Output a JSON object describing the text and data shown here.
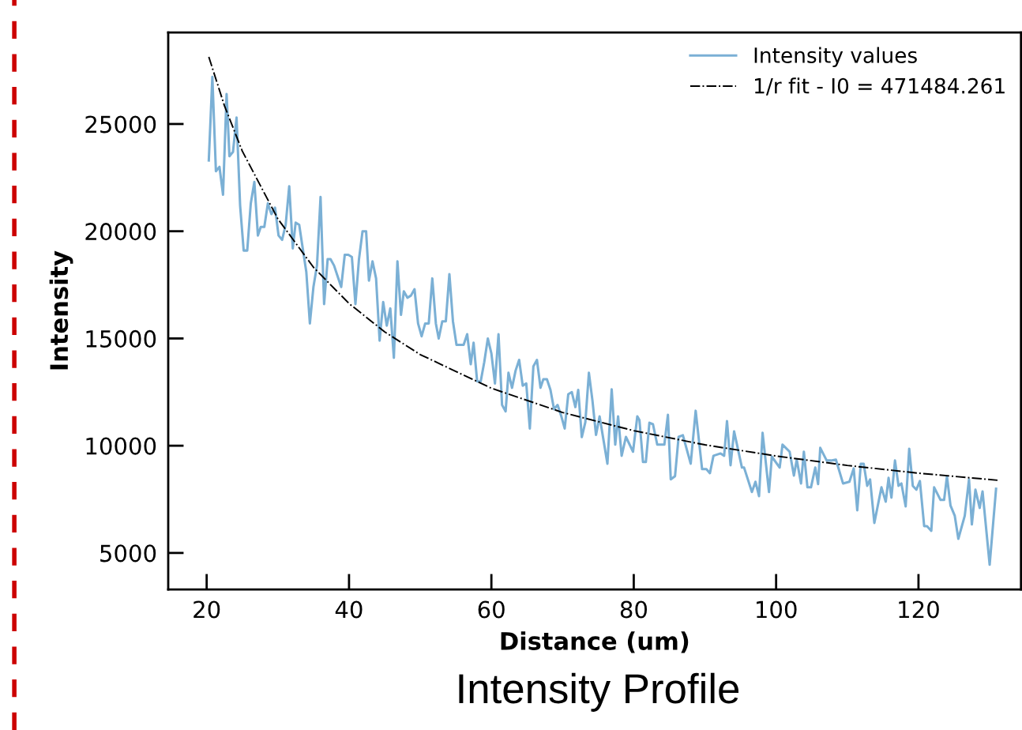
{
  "chart_data": {
    "type": "line",
    "title": "Intensity Profile",
    "xlabel": "Distance (um)",
    "ylabel": "Intensity",
    "xlim": [
      14.6,
      134.4
    ],
    "ylim": [
      3300,
      29270
    ],
    "xticks": [
      20,
      40,
      60,
      80,
      100,
      120
    ],
    "yticks": [
      5000,
      10000,
      15000,
      20000,
      25000
    ],
    "grid": false,
    "legend": "top right",
    "line_style": "solid",
    "marker": "none",
    "series": [
      {
        "name": "Intensity values",
        "color": "#7bb0d5",
        "x": [
          20.3,
          20.8,
          21.3,
          21.8,
          22.3,
          22.8,
          23.2,
          23.7,
          24.2,
          24.7,
          25.2,
          25.7,
          26.2,
          26.7,
          27.2,
          27.6,
          28.1,
          28.6,
          29.1,
          29.6,
          30.1,
          30.6,
          31.1,
          31.6,
          32.1,
          32.5,
          33.0,
          33.5,
          34.0,
          34.5,
          35.0,
          35.5,
          36.0,
          36.5,
          37.0,
          37.4,
          37.9,
          38.4,
          38.9,
          39.4,
          39.9,
          40.4,
          40.9,
          41.4,
          41.9,
          42.4,
          42.8,
          43.3,
          43.8,
          44.3,
          44.8,
          45.3,
          45.8,
          46.3,
          46.8,
          47.3,
          47.7,
          48.2,
          48.7,
          49.2,
          49.7,
          50.2,
          50.7,
          51.2,
          51.7,
          52.2,
          52.6,
          53.1,
          53.6,
          54.1,
          54.6,
          55.1,
          55.6,
          56.1,
          56.6,
          57.1,
          57.5,
          58.0,
          58.5,
          59.0,
          59.5,
          60.0,
          60.5,
          61.0,
          61.5,
          62.0,
          62.4,
          62.9,
          63.4,
          63.9,
          64.4,
          64.9,
          65.4,
          65.9,
          66.4,
          66.9,
          67.3,
          67.8,
          68.3,
          68.8,
          69.3,
          69.8,
          70.3,
          70.8,
          71.3,
          71.8,
          72.2,
          72.7,
          73.2,
          73.7,
          74.2,
          74.7,
          75.2,
          76.3,
          76.9,
          77.4,
          77.8,
          78.3,
          78.9,
          79.9,
          80.5,
          80.8,
          81.3,
          81.7,
          82.2,
          82.7,
          83.3,
          84.3,
          84.8,
          85.2,
          85.8,
          86.3,
          86.9,
          88.0,
          88.7,
          89.6,
          90.2,
          90.7,
          91.2,
          92.2,
          92.7,
          93.1,
          93.6,
          94.1,
          95.2,
          95.5,
          96.6,
          97.1,
          97.6,
          98.1,
          99.0,
          99.4,
          100.5,
          100.9,
          101.9,
          102.5,
          102.9,
          103.5,
          103.9,
          104.4,
          104.9,
          105.5,
          105.9,
          106.2,
          107.1,
          107.7,
          108.4,
          109.4,
          110.3,
          110.9,
          111.4,
          111.9,
          112.3,
          112.8,
          113.2,
          113.8,
          114.8,
          115.4,
          115.8,
          116.2,
          116.7,
          117.2,
          117.6,
          118.2,
          118.7,
          119.2,
          119.7,
          120.2,
          120.8,
          121.2,
          121.8,
          122.2,
          123.1,
          123.6,
          124.0,
          124.5,
          125.1,
          125.6,
          126.5,
          127.1,
          127.5,
          128.0,
          128.6,
          129.0,
          130.0,
          130.9
        ],
        "values": [
          23300,
          27200,
          22800,
          23000,
          21700,
          26400,
          23500,
          23700,
          25300,
          21200,
          19100,
          19100,
          21300,
          22300,
          19800,
          20200,
          20200,
          21300,
          20800,
          21100,
          19800,
          19600,
          20300,
          22100,
          19200,
          20400,
          20300,
          19200,
          18100,
          15700,
          17400,
          18400,
          21600,
          16600,
          18700,
          18700,
          18400,
          17900,
          17400,
          18900,
          18900,
          18800,
          16600,
          18700,
          20000,
          20000,
          17700,
          18600,
          17800,
          14900,
          16700,
          15600,
          16400,
          14100,
          18600,
          16100,
          17200,
          16900,
          17000,
          17300,
          15700,
          15100,
          15700,
          15700,
          17800,
          15700,
          15000,
          15800,
          15800,
          18000,
          15800,
          14700,
          14700,
          14700,
          15200,
          13800,
          14800,
          13000,
          13000,
          13900,
          15000,
          14300,
          12900,
          15200,
          11900,
          11600,
          13400,
          12700,
          13500,
          14000,
          12800,
          12900,
          10800,
          13700,
          14000,
          12700,
          13100,
          13100,
          12600,
          11700,
          11900,
          11400,
          10800,
          12400,
          12500,
          11800,
          12600,
          10400,
          11100,
          13400,
          12100,
          10500,
          11370,
          9160,
          12630,
          10050,
          11370,
          9530,
          10410,
          9720,
          11370,
          11190,
          9240,
          9240,
          11070,
          11000,
          10050,
          10050,
          11440,
          8430,
          8580,
          10410,
          10490,
          9160,
          11630,
          8910,
          8910,
          8720,
          9530,
          9640,
          9530,
          11150,
          9090,
          10670,
          8980,
          8980,
          7840,
          8320,
          7650,
          10600,
          7840,
          9490,
          8980,
          10050,
          9720,
          8610,
          9350,
          8240,
          9720,
          8060,
          8060,
          8980,
          8210,
          9900,
          9310,
          9310,
          9350,
          8240,
          8320,
          8940,
          6990,
          9160,
          9160,
          8130,
          8430,
          6400,
          8060,
          7390,
          8500,
          7580,
          9310,
          8130,
          8240,
          7170,
          9860,
          8130,
          7950,
          8350,
          6250,
          6250,
          6030,
          8060,
          7470,
          7470,
          8570,
          7210,
          6730,
          5660,
          6730,
          8430,
          6330,
          7950,
          7100,
          7870,
          4450,
          7990
        ]
      },
      {
        "name": "1/r fit - I0 = 471484.261",
        "color": "#000000",
        "type": "line",
        "line_style": "dashdot",
        "x": [
          20.3,
          22.5,
          25,
          30,
          35,
          40,
          45,
          50,
          60,
          70,
          80,
          90,
          100,
          110,
          120,
          131.1
        ],
        "values": [
          28130,
          25850,
          23740,
          20580,
          18320,
          16630,
          15310,
          14250,
          12680,
          11550,
          10700,
          10040,
          9520,
          9080,
          8720,
          8390
        ]
      }
    ]
  }
}
